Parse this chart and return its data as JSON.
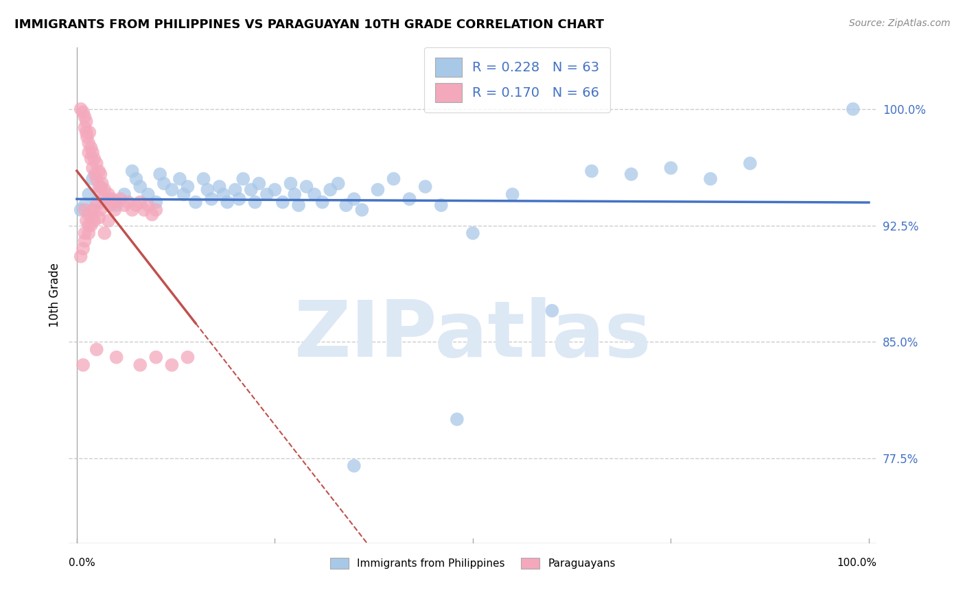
{
  "title": "IMMIGRANTS FROM PHILIPPINES VS PARAGUAYAN 10TH GRADE CORRELATION CHART",
  "source": "Source: ZipAtlas.com",
  "ylabel": "10th Grade",
  "legend_blue_r": "R = 0.228",
  "legend_blue_n": "N = 63",
  "legend_pink_r": "R = 0.170",
  "legend_pink_n": "N = 66",
  "ylim": [
    0.72,
    1.04
  ],
  "xlim": [
    -0.01,
    1.01
  ],
  "ytick_vals": [
    0.775,
    0.85,
    0.925,
    1.0
  ],
  "ytick_labels": [
    "77.5%",
    "85.0%",
    "92.5%",
    "100.0%"
  ],
  "blue_color": "#a8c8e8",
  "pink_color": "#f4a8bc",
  "blue_line_color": "#4472c4",
  "pink_line_color": "#c0504d",
  "watermark_color": "#dde8f5",
  "blue_x": [
    0.005,
    0.01,
    0.015,
    0.02,
    0.025,
    0.03,
    0.04,
    0.05,
    0.06,
    0.07,
    0.075,
    0.08,
    0.09,
    0.1,
    0.105,
    0.11,
    0.12,
    0.13,
    0.135,
    0.14,
    0.15,
    0.16,
    0.165,
    0.17,
    0.18,
    0.185,
    0.19,
    0.2,
    0.205,
    0.21,
    0.22,
    0.225,
    0.23,
    0.24,
    0.25,
    0.26,
    0.27,
    0.275,
    0.28,
    0.29,
    0.3,
    0.31,
    0.32,
    0.33,
    0.34,
    0.35,
    0.36,
    0.38,
    0.4,
    0.42,
    0.44,
    0.46,
    0.5,
    0.55,
    0.6,
    0.65,
    0.7,
    0.75,
    0.8,
    0.85,
    0.98,
    0.48,
    0.35
  ],
  "blue_y": [
    0.935,
    0.938,
    0.945,
    0.955,
    0.94,
    0.95,
    0.942,
    0.938,
    0.945,
    0.96,
    0.955,
    0.95,
    0.945,
    0.94,
    0.958,
    0.952,
    0.948,
    0.955,
    0.945,
    0.95,
    0.94,
    0.955,
    0.948,
    0.942,
    0.95,
    0.945,
    0.94,
    0.948,
    0.942,
    0.955,
    0.948,
    0.94,
    0.952,
    0.945,
    0.948,
    0.94,
    0.952,
    0.945,
    0.938,
    0.95,
    0.945,
    0.94,
    0.948,
    0.952,
    0.938,
    0.942,
    0.935,
    0.948,
    0.955,
    0.942,
    0.95,
    0.938,
    0.92,
    0.945,
    0.87,
    0.96,
    0.958,
    0.962,
    0.955,
    0.965,
    1.0,
    0.8,
    0.77
  ],
  "pink_x": [
    0.005,
    0.008,
    0.01,
    0.01,
    0.012,
    0.012,
    0.013,
    0.015,
    0.015,
    0.016,
    0.018,
    0.018,
    0.02,
    0.02,
    0.022,
    0.023,
    0.025,
    0.025,
    0.028,
    0.028,
    0.03,
    0.03,
    0.032,
    0.033,
    0.035,
    0.038,
    0.04,
    0.042,
    0.045,
    0.048,
    0.05,
    0.055,
    0.06,
    0.065,
    0.07,
    0.075,
    0.08,
    0.085,
    0.09,
    0.095,
    0.1,
    0.01,
    0.012,
    0.015,
    0.018,
    0.02,
    0.022,
    0.025,
    0.028,
    0.01,
    0.015,
    0.02,
    0.03,
    0.035,
    0.04,
    0.01,
    0.015,
    0.005,
    0.008,
    0.025,
    0.05,
    0.08,
    0.1,
    0.12,
    0.14,
    0.008
  ],
  "pink_y": [
    1.0,
    0.998,
    0.995,
    0.988,
    0.992,
    0.985,
    0.982,
    0.978,
    0.972,
    0.985,
    0.975,
    0.968,
    0.972,
    0.962,
    0.968,
    0.958,
    0.965,
    0.955,
    0.96,
    0.95,
    0.958,
    0.948,
    0.952,
    0.942,
    0.948,
    0.94,
    0.945,
    0.938,
    0.942,
    0.935,
    0.94,
    0.942,
    0.938,
    0.94,
    0.935,
    0.938,
    0.94,
    0.935,
    0.938,
    0.932,
    0.935,
    0.935,
    0.928,
    0.932,
    0.925,
    0.935,
    0.928,
    0.938,
    0.93,
    0.92,
    0.925,
    0.93,
    0.935,
    0.92,
    0.928,
    0.915,
    0.92,
    0.905,
    0.91,
    0.845,
    0.84,
    0.835,
    0.84,
    0.835,
    0.84,
    0.835
  ]
}
